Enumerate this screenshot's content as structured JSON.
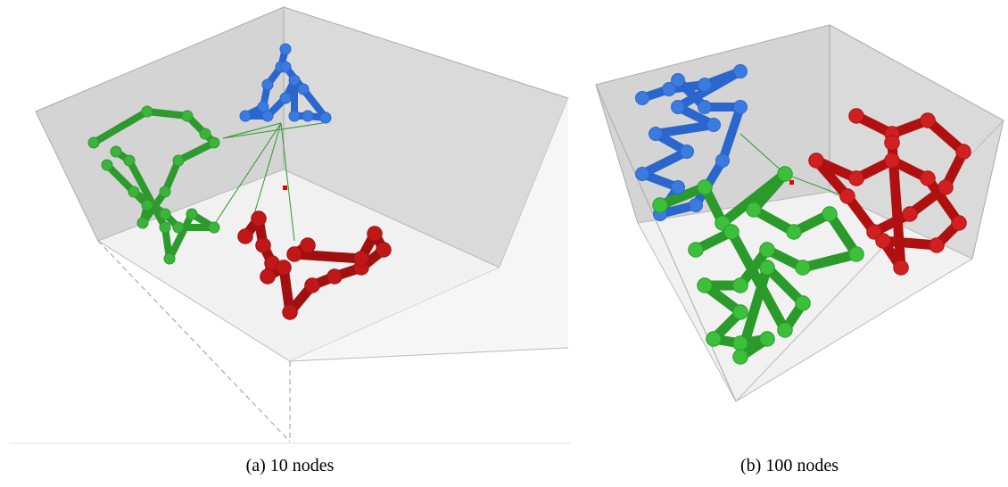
{
  "figure": {
    "panels": [
      {
        "caption": "(a) 10 nodes"
      },
      {
        "caption": "(b) 100 nodes"
      }
    ]
  }
}
